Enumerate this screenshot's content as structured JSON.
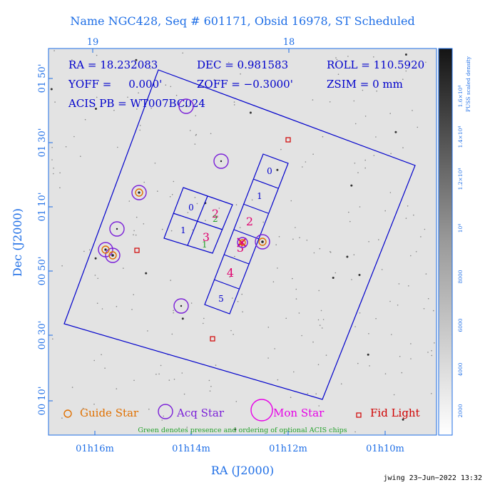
{
  "title": "Name NGC428, Seq # 601171, Obsid 16978, ST Scheduled",
  "top_axis_ticks": [
    "19",
    "18"
  ],
  "info": {
    "ra": "RA = 18.232083",
    "dec": "DEC = 0.981583",
    "roll": "ROLL = 110.5920",
    "yoff": "YOFF =     0.000'",
    "zoff": "ZOFF = −0.3000'",
    "zsim": "ZSIM = 0 mm",
    "acis_pb": "ACIS PB = WT007BC024"
  },
  "y_axis": {
    "label": "Dec (J2000)",
    "ticks": [
      "01 50'",
      "01 30'",
      "01 10'",
      "00 50'",
      "00 30'",
      "00 10'"
    ]
  },
  "x_axis": {
    "label": "RA (J2000)",
    "ticks": [
      "01h16m",
      "01h14m",
      "01h12m",
      "01h10m"
    ]
  },
  "colorbar": {
    "label": "PUSS scaled density",
    "ticks": [
      "1.6×10⁴",
      "1.4×10⁴",
      "1.2×10⁴",
      "10⁴",
      "8000",
      "6000",
      "4000",
      "2000"
    ]
  },
  "chips": {
    "i_array": [
      "0",
      "2",
      "1",
      "3"
    ],
    "s_array": [
      "0",
      "1",
      "2",
      "3",
      "4",
      "5"
    ]
  },
  "legend": {
    "guide": "Guide Star",
    "acq": "Acq Star",
    "mon": "Mon Star",
    "fid": "Fid Light",
    "note": "Green denotes presence and ordering of optional ACIS chips"
  },
  "footer": "jwing 23−Jun−2022 13:32",
  "colors": {
    "axis_text": "#1e6ee6",
    "fov": "#0000cc",
    "guide": "#e07000",
    "acq": "#7a1fd8",
    "mon": "#e600e6",
    "fid": "#d00000",
    "optional": "#22a02a",
    "chip_label_s": "#e0006e"
  }
}
